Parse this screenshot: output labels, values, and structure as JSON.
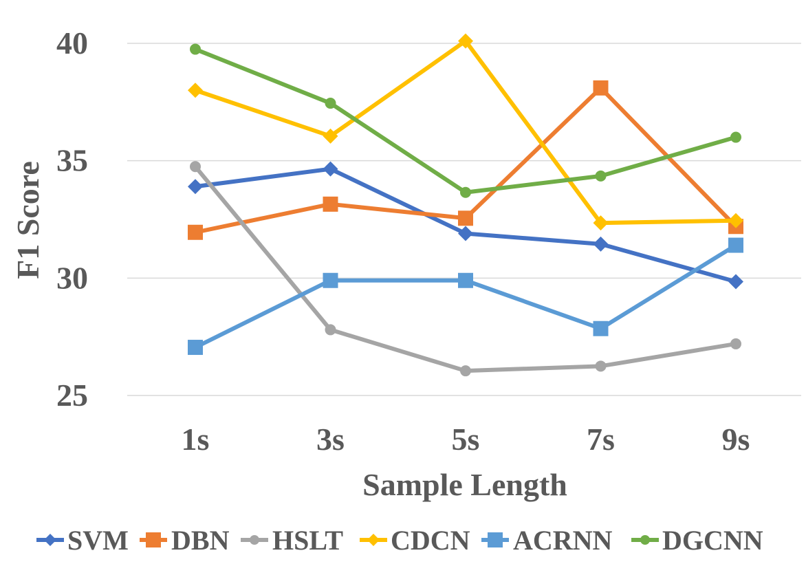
{
  "chart_data": {
    "type": "line",
    "title": "",
    "xlabel": "Sample Length",
    "ylabel": "F1 Score",
    "categories": [
      "1s",
      "3s",
      "5s",
      "7s",
      "9s"
    ],
    "ylim": [
      25,
      40
    ],
    "yticks": [
      25,
      30,
      35,
      40
    ],
    "ytick_labels": [
      "25",
      "30",
      "35",
      "40"
    ],
    "grid": true,
    "legend_position": "bottom",
    "series": [
      {
        "name": "SVM",
        "color": "#4472C4",
        "marker": "diamond",
        "values": [
          33.9,
          34.65,
          31.9,
          31.45,
          29.85
        ]
      },
      {
        "name": "DBN",
        "color": "#ED7D31",
        "marker": "square",
        "values": [
          31.95,
          33.15,
          32.55,
          38.1,
          32.2
        ]
      },
      {
        "name": "HSLT",
        "color": "#A5A5A5",
        "marker": "circle",
        "values": [
          34.75,
          27.8,
          26.05,
          26.25,
          27.2
        ]
      },
      {
        "name": "CDCN",
        "color": "#FFC000",
        "marker": "diamond",
        "values": [
          38.0,
          36.05,
          40.1,
          32.35,
          32.45
        ]
      },
      {
        "name": "ACRNN",
        "color": "#5B9BD5",
        "marker": "square",
        "values": [
          27.05,
          29.9,
          29.9,
          27.85,
          31.4
        ]
      },
      {
        "name": "DGCNN",
        "color": "#70AD47",
        "marker": "circle",
        "values": [
          39.75,
          37.45,
          33.65,
          34.35,
          36.0
        ]
      }
    ]
  }
}
